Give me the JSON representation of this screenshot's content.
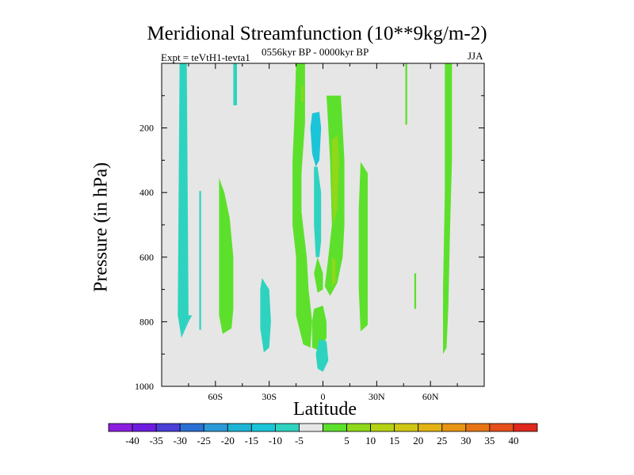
{
  "chart_data": {
    "type": "contour",
    "title": "Meridional Streamfunction (10**9kg/m-2)",
    "experiment": "Expt = teVtH1-tevta1",
    "period": "0556kyr BP - 0000kyr BP",
    "season": "JJA",
    "xlabel": "Latitude",
    "ylabel": "Pressure (in hPa)",
    "xlim": [
      -90,
      90
    ],
    "ylim": [
      1000,
      0
    ],
    "x_ticks": [
      {
        "value": -60,
        "label": "60S"
      },
      {
        "value": -30,
        "label": "30S"
      },
      {
        "value": 0,
        "label": "0"
      },
      {
        "value": 30,
        "label": "30N"
      },
      {
        "value": 60,
        "label": "60N"
      }
    ],
    "y_ticks": [
      {
        "value": 200,
        "label": "200"
      },
      {
        "value": 400,
        "label": "400"
      },
      {
        "value": 600,
        "label": "600"
      },
      {
        "value": 800,
        "label": "800"
      },
      {
        "value": 1000,
        "label": "1000"
      }
    ],
    "background_color": "#e6e6e6",
    "contour_regions": [
      {
        "level": -5,
        "color": "#2ed3c0",
        "points": [
          [
            -80,
            0
          ],
          [
            -76,
            0
          ],
          [
            -75,
            780
          ],
          [
            -73,
            780
          ],
          [
            -75,
            800
          ],
          [
            -79,
            850
          ],
          [
            -81,
            780
          ]
        ]
      },
      {
        "level": -5,
        "color": "#2ed3c0",
        "points": [
          [
            -69,
            395
          ],
          [
            -68,
            395
          ],
          [
            -68,
            825
          ],
          [
            -69,
            825
          ]
        ]
      },
      {
        "level": -5,
        "color": "#2ed3c0",
        "points": [
          [
            -50,
            0
          ],
          [
            -48,
            0
          ],
          [
            -48,
            130
          ],
          [
            -50,
            130
          ]
        ]
      },
      {
        "level": -5,
        "color": "#2ed3c0",
        "points": [
          [
            -34,
            665
          ],
          [
            -30,
            700
          ],
          [
            -29,
            800
          ],
          [
            -30,
            880
          ],
          [
            -33,
            895
          ],
          [
            -35,
            820
          ],
          [
            -35,
            700
          ]
        ]
      },
      {
        "level": 5,
        "color": "#5de02c",
        "points": [
          [
            -58,
            355
          ],
          [
            -55,
            400
          ],
          [
            -52,
            480
          ],
          [
            -50,
            600
          ],
          [
            -50,
            760
          ],
          [
            -51,
            820
          ],
          [
            -56,
            838
          ],
          [
            -58,
            780
          ],
          [
            -58,
            500
          ]
        ]
      },
      {
        "level": 5,
        "color": "#5de02c",
        "points": [
          [
            -15,
            0
          ],
          [
            -10,
            0
          ],
          [
            -10,
            95
          ],
          [
            -10,
            185
          ],
          [
            -12,
            340
          ],
          [
            -12,
            460
          ],
          [
            -9,
            600
          ],
          [
            -8,
            700
          ],
          [
            -6,
            800
          ],
          [
            -7,
            880
          ],
          [
            -11,
            870
          ],
          [
            -15,
            780
          ],
          [
            -15,
            600
          ],
          [
            -17,
            500
          ],
          [
            -17,
            300
          ],
          [
            -16,
            180
          ]
        ]
      },
      {
        "level": 5,
        "color": "#5de02c",
        "points": [
          [
            2,
            100
          ],
          [
            10,
            100
          ],
          [
            11,
            200
          ],
          [
            12,
            300
          ],
          [
            12,
            500
          ],
          [
            11,
            600
          ],
          [
            8,
            680
          ],
          [
            4,
            720
          ],
          [
            1,
            690
          ],
          [
            3,
            600
          ],
          [
            5,
            500
          ],
          [
            4,
            300
          ],
          [
            3,
            200
          ]
        ]
      },
      {
        "level": 5,
        "color": "#5de02c",
        "points": [
          [
            -5,
            760
          ],
          [
            0,
            750
          ],
          [
            2,
            800
          ],
          [
            2,
            850
          ],
          [
            -2,
            890
          ],
          [
            -6,
            880
          ],
          [
            -6,
            800
          ]
        ]
      },
      {
        "level": 5,
        "color": "#5de02c",
        "points": [
          [
            -3,
            600
          ],
          [
            0,
            650
          ],
          [
            0,
            700
          ],
          [
            -3,
            710
          ],
          [
            -5,
            650
          ]
        ]
      },
      {
        "level": 5,
        "color": "#5de02c",
        "points": [
          [
            21,
            305
          ],
          [
            25,
            340
          ],
          [
            25,
            600
          ],
          [
            25,
            810
          ],
          [
            21,
            830
          ],
          [
            20,
            700
          ],
          [
            20,
            450
          ]
        ]
      },
      {
        "level": 5,
        "color": "#5de02c",
        "points": [
          [
            46,
            0
          ],
          [
            47,
            0
          ],
          [
            47,
            190
          ],
          [
            46,
            190
          ]
        ]
      },
      {
        "level": 5,
        "color": "#5de02c",
        "points": [
          [
            51,
            650
          ],
          [
            52,
            650
          ],
          [
            52,
            760
          ],
          [
            51,
            760
          ]
        ]
      },
      {
        "level": 5,
        "color": "#5de02c",
        "points": [
          [
            68,
            0
          ],
          [
            72,
            0
          ],
          [
            72,
            300
          ],
          [
            71,
            500
          ],
          [
            70,
            750
          ],
          [
            69,
            880
          ],
          [
            67,
            900
          ],
          [
            67,
            700
          ],
          [
            68,
            400
          ]
        ]
      },
      {
        "level": 10,
        "color": "#8fd81a",
        "points": [
          [
            -12,
            70
          ],
          [
            -11,
            70
          ],
          [
            -11,
            120
          ],
          [
            -12,
            120
          ]
        ]
      },
      {
        "level": 10,
        "color": "#8fd81a",
        "points": [
          [
            5,
            240
          ],
          [
            8,
            220
          ],
          [
            9,
            300
          ],
          [
            8,
            450
          ],
          [
            6,
            500
          ],
          [
            5,
            400
          ]
        ]
      },
      {
        "level": 10,
        "color": "#8fd81a",
        "points": [
          [
            5,
            600
          ],
          [
            7,
            610
          ],
          [
            7,
            680
          ],
          [
            5,
            690
          ]
        ]
      },
      {
        "level": -10,
        "color": "#1bc5d8",
        "points": [
          [
            -6,
            155
          ],
          [
            -2,
            150
          ],
          [
            -1,
            200
          ],
          [
            -2,
            300
          ],
          [
            -4,
            320
          ],
          [
            -6,
            280
          ],
          [
            -7,
            200
          ]
        ]
      },
      {
        "level": -5,
        "color": "#2ed3c0",
        "points": [
          [
            -5,
            320
          ],
          [
            -3,
            320
          ],
          [
            -1,
            400
          ],
          [
            -1,
            550
          ],
          [
            -2,
            600
          ],
          [
            -4,
            600
          ],
          [
            -5,
            500
          ]
        ]
      },
      {
        "level": -5,
        "color": "#2ed3c0",
        "points": [
          [
            -2,
            855
          ],
          [
            2,
            860
          ],
          [
            3,
            920
          ],
          [
            0,
            955
          ],
          [
            -3,
            945
          ],
          [
            -4,
            900
          ]
        ]
      }
    ],
    "colorbar": {
      "colors": [
        "#8b1fdf",
        "#6d1de0",
        "#4b3fd8",
        "#2b6fd5",
        "#2b99d8",
        "#1db3d5",
        "#1bc5d8",
        "#2ed3c0",
        "#e6e6e6",
        "#5de02c",
        "#8fd81a",
        "#b5d313",
        "#cfc714",
        "#e2b313",
        "#e79512",
        "#e77414",
        "#e6501a",
        "#e0281e"
      ],
      "labels": [
        "-40",
        "-35",
        "-30",
        "-25",
        "-20",
        "-15",
        "-10",
        "-5",
        "5",
        "10",
        "15",
        "20",
        "25",
        "30",
        "35",
        "40"
      ]
    }
  }
}
